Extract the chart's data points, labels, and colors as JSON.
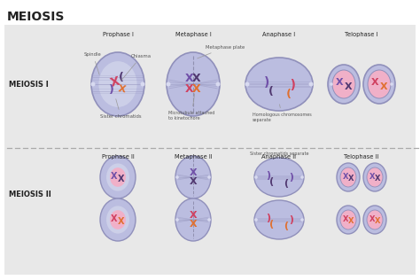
{
  "title": "MEIOSIS",
  "bg_outer": "#ffffff",
  "bg_gray": "#e8e8e8",
  "cell_bg": "#bbbde0",
  "cell_border": "#9090bb",
  "cell_bg_light": "#c8cce8",
  "nucleus_pink": "#f0b0c8",
  "chr_red": "#d04060",
  "chr_orange": "#e07030",
  "chr_purple": "#7050a8",
  "chr_dark": "#503870",
  "spindle_color": "#9898c0",
  "dot_color": "#d8daf0",
  "row1_label": "MEIOSIS I",
  "row2_label": "MEIOSIS II",
  "col_labels_1": [
    "Prophase I",
    "Metaphase I",
    "Anaphase I",
    "Telophase I"
  ],
  "col_labels_2": [
    "Prophase II",
    "Metaphase II",
    "Anaphase II",
    "Telophase II"
  ],
  "dashed_color": "#aaaaaa",
  "text_dark": "#222222",
  "ann_color": "#555555",
  "ann_arrow": "#999999"
}
